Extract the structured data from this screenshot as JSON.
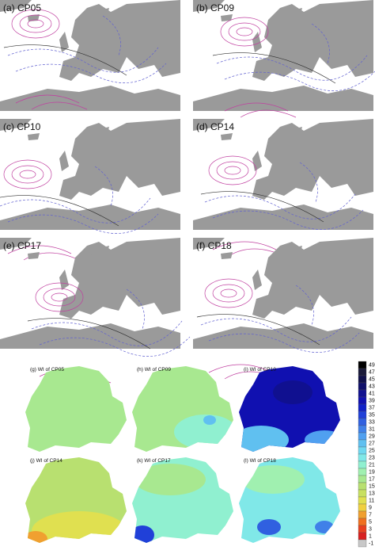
{
  "panels": [
    "(a) CP05",
    "(b) CP09",
    "(c) CP10",
    "(d) CP14",
    "(e) CP17",
    "(f) CP18"
  ],
  "wi_panels": [
    "(g) WI of CP05",
    "(h) WI of CP09",
    "(i) WI of CP10",
    "(j) WI of CP14",
    "(k) WI of CP17",
    "(l) WI of CP18"
  ],
  "colorbar": {
    "labels": [
      49,
      47,
      45,
      43,
      41,
      39,
      37,
      35,
      33,
      31,
      29,
      27,
      25,
      23,
      21,
      19,
      17,
      15,
      13,
      11,
      9,
      7,
      5,
      3,
      1,
      -1
    ],
    "colors": [
      "#000000",
      "#1a1a3a",
      "#10104a",
      "#10106a",
      "#101090",
      "#1010b0",
      "#1020c8",
      "#2040d8",
      "#3060e0",
      "#4080e8",
      "#50a0f0",
      "#60c0f0",
      "#70d8f0",
      "#80e8e8",
      "#90f0d0",
      "#a0f0b0",
      "#a8e890",
      "#b8e070",
      "#c8e060",
      "#e0e050",
      "#f0d040",
      "#f0a030",
      "#f07020",
      "#e84020",
      "#d82020",
      "#c8c8c8"
    ]
  }
}
